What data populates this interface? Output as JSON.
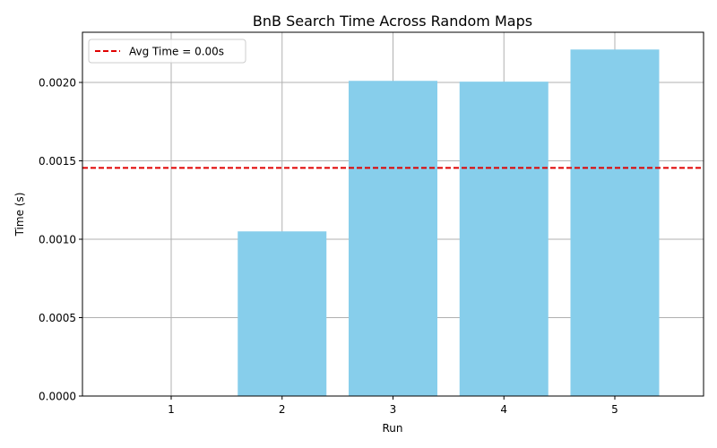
{
  "chart_data": {
    "type": "bar",
    "title": "BnB Search Time Across Random Maps",
    "xlabel": "Run",
    "ylabel": "Time (s)",
    "categories": [
      "1",
      "2",
      "3",
      "4",
      "5"
    ],
    "values": [
      0.0,
      0.00105,
      0.00201,
      0.002005,
      0.00221
    ],
    "ylim": [
      0,
      0.00232
    ],
    "yticks": [
      0.0,
      0.0005,
      0.001,
      0.0015,
      0.002
    ],
    "ytick_labels": [
      "0.0000",
      "0.0005",
      "0.0010",
      "0.0015",
      "0.0020"
    ],
    "bar_color": "#87ceeb",
    "grid": true,
    "reference_line": {
      "value": 0.001455,
      "color": "#e00000",
      "style": "dashed"
    },
    "legend": {
      "placement": "top-left",
      "entries": [
        "Avg Time = 0.00s"
      ]
    }
  }
}
